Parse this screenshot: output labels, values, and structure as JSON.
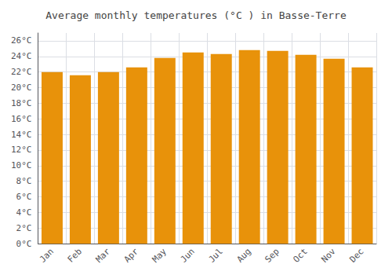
{
  "chart_data": {
    "type": "bar",
    "title": "Average monthly temperatures (°C ) in Basse-Terre",
    "categories": [
      "Jan",
      "Feb",
      "Mar",
      "Apr",
      "May",
      "Jun",
      "Jul",
      "Aug",
      "Sep",
      "Oct",
      "Nov",
      "Dec"
    ],
    "values": [
      22.0,
      21.6,
      22.0,
      22.6,
      23.8,
      24.5,
      24.3,
      24.8,
      24.7,
      24.2,
      23.7,
      22.6
    ],
    "color": "#E8920A",
    "ylim": [
      0,
      27
    ],
    "yticks": [
      {
        "value": 0,
        "label": "0°C"
      },
      {
        "value": 2,
        "label": "2°C"
      },
      {
        "value": 4,
        "label": "4°C"
      },
      {
        "value": 6,
        "label": "6°C"
      },
      {
        "value": 8,
        "label": "8°C"
      },
      {
        "value": 10,
        "label": "10°C"
      },
      {
        "value": 12,
        "label": "12°C"
      },
      {
        "value": 14,
        "label": "14°C"
      },
      {
        "value": 16,
        "label": "16°C"
      },
      {
        "value": 18,
        "label": "18°C"
      },
      {
        "value": 20,
        "label": "20°C"
      },
      {
        "value": 22,
        "label": "22°C"
      },
      {
        "value": 24,
        "label": "24°C"
      },
      {
        "value": 26,
        "label": "26°C"
      }
    ],
    "grid": true
  }
}
